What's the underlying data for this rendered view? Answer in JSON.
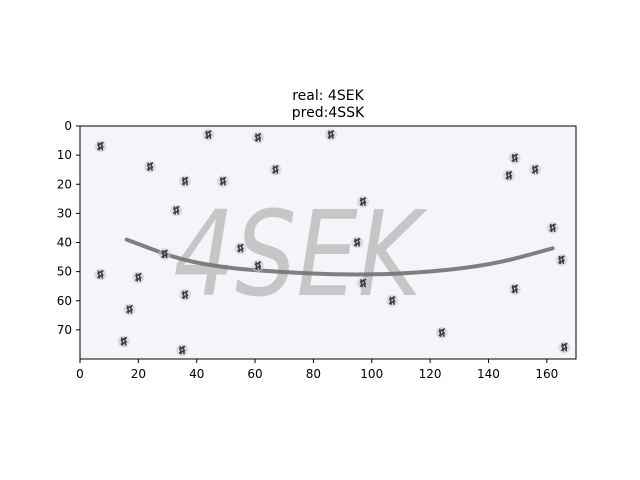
{
  "chart_data": {
    "type": "image",
    "title_lines": [
      "real: 4SEK",
      "pred:4SSK"
    ],
    "captcha_text": "4SEK",
    "x_ticks": [
      0,
      20,
      40,
      60,
      80,
      100,
      120,
      140,
      160
    ],
    "y_ticks": [
      0,
      10,
      20,
      30,
      40,
      50,
      60,
      70
    ],
    "xlim": [
      0,
      170
    ],
    "ylim": [
      80,
      0
    ],
    "noise_marks": [
      [
        7,
        7
      ],
      [
        24,
        14
      ],
      [
        36,
        19
      ],
      [
        44,
        3
      ],
      [
        49,
        19
      ],
      [
        61,
        4
      ],
      [
        67,
        15
      ],
      [
        86,
        3
      ],
      [
        97,
        26
      ],
      [
        33,
        29
      ],
      [
        29,
        44
      ],
      [
        55,
        42
      ],
      [
        61,
        48
      ],
      [
        95,
        40
      ],
      [
        97,
        54
      ],
      [
        107,
        60
      ],
      [
        7,
        51
      ],
      [
        20,
        52
      ],
      [
        17,
        63
      ],
      [
        36,
        58
      ],
      [
        15,
        74
      ],
      [
        35,
        77
      ],
      [
        124,
        71
      ],
      [
        149,
        11
      ],
      [
        147,
        17
      ],
      [
        156,
        15
      ],
      [
        162,
        35
      ],
      [
        165,
        46
      ],
      [
        149,
        56
      ],
      [
        166,
        76
      ]
    ],
    "arc_points": [
      [
        16,
        39
      ],
      [
        40,
        48
      ],
      [
        80,
        51
      ],
      [
        110,
        51
      ],
      [
        140,
        48
      ],
      [
        162,
        42
      ]
    ],
    "background_color": "#f6f4fa",
    "noise_color": "#3a3f44",
    "text_color": "#b7b7b7",
    "arc_color": "#6f7472"
  }
}
